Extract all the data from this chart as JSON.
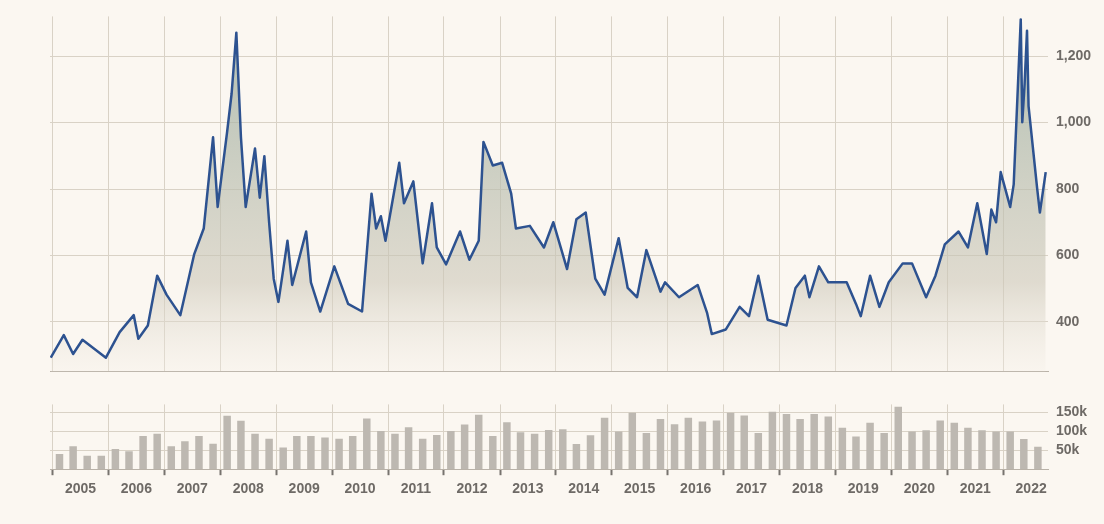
{
  "chart_data": [
    {
      "type": "area",
      "tick_labels": "y",
      "grid": true,
      "legend": false,
      "marker": "none",
      "line_style": "solid",
      "xlim": [
        "2004-12-15",
        "2022-10-20"
      ],
      "xticks": [
        {
          "value": "2005-01-01",
          "label": null
        },
        {
          "value": "2006-01-01",
          "label": null
        },
        {
          "value": "2007-01-01",
          "label": null
        },
        {
          "value": "2008-01-01",
          "label": null
        },
        {
          "value": "2009-01-01",
          "label": null
        },
        {
          "value": "2010-01-01",
          "label": null
        },
        {
          "value": "2011-01-01",
          "label": null
        },
        {
          "value": "2012-01-01",
          "label": null
        },
        {
          "value": "2013-01-01",
          "label": null
        },
        {
          "value": "2014-01-01",
          "label": null
        },
        {
          "value": "2015-01-01",
          "label": null
        },
        {
          "value": "2016-01-01",
          "label": null
        },
        {
          "value": "2017-01-01",
          "label": null
        },
        {
          "value": "2018-01-01",
          "label": null
        },
        {
          "value": "2019-01-01",
          "label": null
        },
        {
          "value": "2020-01-01",
          "label": null
        },
        {
          "value": "2021-01-01",
          "label": null
        },
        {
          "value": "2022-01-01",
          "label": null
        }
      ],
      "ylim": [
        250,
        1320
      ],
      "yticks": [
        400,
        600,
        800,
        {
          "value": 1000,
          "label": "1,000"
        },
        {
          "value": 1200,
          "label": "1,200"
        }
      ],
      "series": [
        {
          "color": "#2d5290",
          "x": [
            "2004-12-20",
            "2005-03",
            "2005-05",
            "2005-07",
            "2005-12",
            "2006-03",
            "2006-06",
            "2006-07",
            "2006-09",
            "2006-11",
            "2007-01",
            "2007-04",
            "2007-07",
            "2007-09",
            "2007-11",
            "2007-12",
            "2008-02",
            "2008-03",
            "2008-04",
            "2008-05",
            "2008-06",
            "2008-08",
            "2008-09",
            "2008-10",
            "2008-11",
            "2008-12",
            "2009-01",
            "2009-03",
            "2009-04",
            "2009-07",
            "2009-08",
            "2009-10",
            "2010-01",
            "2010-04",
            "2010-07",
            "2010-09",
            "2010-10",
            "2010-11",
            "2010-12",
            "2011-03",
            "2011-04",
            "2011-06",
            "2011-08",
            "2011-10",
            "2011-11",
            "2012-01",
            "2012-04",
            "2012-06",
            "2012-08",
            "2012-09",
            "2012-11",
            "2013-01",
            "2013-03",
            "2013-04",
            "2013-07",
            "2013-10",
            "2013-12",
            "2014-03",
            "2014-05",
            "2014-07",
            "2014-09",
            "2014-11",
            "2015-02",
            "2015-04",
            "2015-06",
            "2015-08",
            "2015-11",
            "2015-12",
            "2016-03",
            "2016-06",
            "2016-07",
            "2016-09",
            "2016-10",
            "2017-01",
            "2017-04",
            "2017-06",
            "2017-08",
            "2017-10",
            "2018-02",
            "2018-04",
            "2018-06",
            "2018-07",
            "2018-09",
            "2018-11",
            "2019-03",
            "2019-05",
            "2019-06",
            "2019-08",
            "2019-10",
            "2019-12",
            "2020-03",
            "2020-05",
            "2020-08",
            "2020-10",
            "2020-12",
            "2021-03",
            "2021-05",
            "2021-07",
            "2021-09",
            "2021-10",
            "2021-11",
            "2021-12",
            "2022-02",
            "2022-03-10",
            "2022-04-25",
            "2022-05-05",
            "2022-05-20",
            "2022-06-05",
            "2022-06-15",
            "2022-08-10",
            "2022-08-28",
            "2022-10-05"
          ],
          "values": [
            292,
            360,
            303,
            346,
            292,
            369,
            420,
            349,
            389,
            539,
            482,
            420,
            604,
            681,
            956,
            746,
            973,
            1087,
            1271,
            956,
            746,
            922,
            774,
            899,
            700,
            530,
            460,
            644,
            511,
            672,
            519,
            431,
            567,
            454,
            431,
            786,
            681,
            718,
            644,
            879,
            757,
            823,
            576,
            757,
            624,
            573,
            672,
            587,
            644,
            942,
            871,
            879,
            786,
            681,
            689,
            624,
            700,
            559,
            709,
            729,
            530,
            482,
            652,
            502,
            474,
            616,
            491,
            519,
            474,
            502,
            511,
            426,
            363,
            377,
            445,
            417,
            539,
            406,
            389,
            502,
            539,
            474,
            567,
            519,
            519,
            454,
            417,
            539,
            445,
            519,
            576,
            576,
            474,
            539,
            633,
            672,
            624,
            757,
            604,
            738,
            700,
            851,
            746,
            814,
            1311,
            1001,
            1115,
            1277,
            1050,
            803,
            729,
            851
          ]
        }
      ]
    },
    {
      "type": "bar",
      "grid": true,
      "legend": false,
      "xlim": [
        "2004-12-15",
        "2022-10-20"
      ],
      "xticks": [
        {
          "value": "2005-01-01",
          "label": null
        },
        {
          "value": "2005-07-02",
          "label": "2005"
        },
        {
          "value": "2006-01-01",
          "label": null
        },
        {
          "value": "2006-07-02",
          "label": "2006"
        },
        {
          "value": "2007-01-01",
          "label": null
        },
        {
          "value": "2007-07-02",
          "label": "2007"
        },
        {
          "value": "2008-01-01",
          "label": null
        },
        {
          "value": "2008-07-02",
          "label": "2008"
        },
        {
          "value": "2009-01-01",
          "label": null
        },
        {
          "value": "2009-07-02",
          "label": "2009"
        },
        {
          "value": "2010-01-01",
          "label": null
        },
        {
          "value": "2010-07-02",
          "label": "2010"
        },
        {
          "value": "2011-01-01",
          "label": null
        },
        {
          "value": "2011-07-02",
          "label": "2011"
        },
        {
          "value": "2012-01-01",
          "label": null
        },
        {
          "value": "2012-07-02",
          "label": "2012"
        },
        {
          "value": "2013-01-01",
          "label": null
        },
        {
          "value": "2013-07-02",
          "label": "2013"
        },
        {
          "value": "2014-01-01",
          "label": null
        },
        {
          "value": "2014-07-02",
          "label": "2014"
        },
        {
          "value": "2015-01-01",
          "label": null
        },
        {
          "value": "2015-07-02",
          "label": "2015"
        },
        {
          "value": "2016-01-01",
          "label": null
        },
        {
          "value": "2016-07-02",
          "label": "2016"
        },
        {
          "value": "2017-01-01",
          "label": null
        },
        {
          "value": "2017-07-02",
          "label": "2017"
        },
        {
          "value": "2018-01-01",
          "label": null
        },
        {
          "value": "2018-07-02",
          "label": "2018"
        },
        {
          "value": "2019-01-01",
          "label": null
        },
        {
          "value": "2019-07-02",
          "label": "2019"
        },
        {
          "value": "2020-01-01",
          "label": null
        },
        {
          "value": "2020-07-02",
          "label": "2020"
        },
        {
          "value": "2021-01-01",
          "label": null
        },
        {
          "value": "2021-07-02",
          "label": "2021"
        },
        {
          "value": "2022-01-01",
          "label": null
        },
        {
          "value": "2022-07-02",
          "label": "2022"
        }
      ],
      "ylim": [
        0,
        170000
      ],
      "yticks": [
        {
          "value": 50000,
          "label": "50k"
        },
        {
          "value": 100000,
          "label": "100k"
        },
        {
          "value": 150000,
          "label": "150k"
        }
      ],
      "series": [
        {
          "color": "#bdb8b1",
          "x": [
            "2005-02-15",
            "2005-05-15",
            "2005-08-15",
            "2005-11-15",
            "2006-02-15",
            "2006-05-15",
            "2006-08-15",
            "2006-11-15",
            "2007-02-15",
            "2007-05-15",
            "2007-08-15",
            "2007-11-15",
            "2008-02-15",
            "2008-05-15",
            "2008-08-15",
            "2008-11-15",
            "2009-02-15",
            "2009-05-15",
            "2009-08-15",
            "2009-11-15",
            "2010-02-15",
            "2010-05-15",
            "2010-08-15",
            "2010-11-15",
            "2011-02-15",
            "2011-05-15",
            "2011-08-15",
            "2011-11-15",
            "2012-02-15",
            "2012-05-15",
            "2012-08-15",
            "2012-11-15",
            "2013-02-15",
            "2013-05-15",
            "2013-08-15",
            "2013-11-15",
            "2014-02-15",
            "2014-05-15",
            "2014-08-15",
            "2014-11-15",
            "2015-02-15",
            "2015-05-15",
            "2015-08-15",
            "2015-11-15",
            "2016-02-15",
            "2016-05-15",
            "2016-08-15",
            "2016-11-15",
            "2017-02-15",
            "2017-05-15",
            "2017-08-15",
            "2017-11-15",
            "2018-02-15",
            "2018-05-15",
            "2018-08-15",
            "2018-11-15",
            "2019-02-15",
            "2019-05-15",
            "2019-08-15",
            "2019-11-15",
            "2020-02-15",
            "2020-05-15",
            "2020-08-15",
            "2020-11-15",
            "2021-02-15",
            "2021-05-15",
            "2021-08-15",
            "2021-11-15",
            "2022-02-15",
            "2022-05-15",
            "2022-08-15"
          ],
          "values": [
            40000,
            60000,
            35000,
            35000,
            53000,
            47000,
            87000,
            93000,
            60000,
            73000,
            87000,
            67000,
            140000,
            127000,
            93000,
            80000,
            57000,
            87000,
            87000,
            83000,
            80000,
            87000,
            133000,
            100000,
            93000,
            110000,
            80000,
            90000,
            100000,
            117000,
            143000,
            87000,
            123000,
            97000,
            93000,
            103000,
            105000,
            66000,
            89000,
            135000,
            99000,
            148000,
            95000,
            132000,
            118000,
            135000,
            125000,
            128000,
            148000,
            141000,
            95000,
            151000,
            145000,
            132000,
            145000,
            138000,
            109000,
            86000,
            122000,
            95000,
            164000,
            99000,
            102000,
            128000,
            122000,
            109000,
            102000,
            99000,
            99000,
            79000,
            59000
          ]
        }
      ]
    }
  ]
}
